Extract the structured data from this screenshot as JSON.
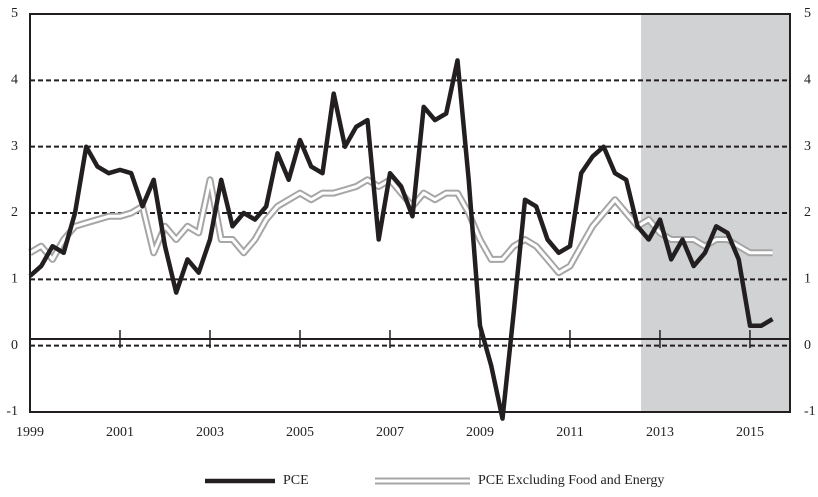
{
  "chart_data": {
    "type": "line",
    "x": [
      1999,
      1999.25,
      1999.5,
      1999.75,
      2000,
      2000.25,
      2000.5,
      2000.75,
      2001,
      2001.25,
      2001.5,
      2001.75,
      2002,
      2002.25,
      2002.5,
      2002.75,
      2003,
      2003.25,
      2003.5,
      2003.75,
      2004,
      2004.25,
      2004.5,
      2004.75,
      2005,
      2005.25,
      2005.5,
      2005.75,
      2006,
      2006.25,
      2006.5,
      2006.75,
      2007,
      2007.25,
      2007.5,
      2007.75,
      2008,
      2008.25,
      2008.5,
      2008.75,
      2009,
      2009.25,
      2009.5,
      2009.75,
      2010,
      2010.25,
      2010.5,
      2010.75,
      2011,
      2011.25,
      2011.5,
      2011.75,
      2012,
      2012.25,
      2012.5,
      2012.75,
      2013,
      2013.25,
      2013.5,
      2013.75,
      2014,
      2014.25,
      2014.5,
      2014.75,
      2015,
      2015.25,
      2015.5
    ],
    "series": [
      {
        "name": "PCE",
        "color": "#231f20",
        "style": "solid",
        "values": [
          1.05,
          1.2,
          1.5,
          1.4,
          2.0,
          3.0,
          2.7,
          2.6,
          2.65,
          2.6,
          2.1,
          2.5,
          1.5,
          0.8,
          1.3,
          1.1,
          1.6,
          2.5,
          1.8,
          2.0,
          1.9,
          2.1,
          2.9,
          2.5,
          3.1,
          2.7,
          2.6,
          3.8,
          3.0,
          3.3,
          3.4,
          1.6,
          2.6,
          2.4,
          1.95,
          3.6,
          3.4,
          3.5,
          4.3,
          2.5,
          0.3,
          -0.3,
          -1.1,
          0.5,
          2.2,
          2.1,
          1.6,
          1.4,
          1.5,
          2.6,
          2.85,
          3.0,
          2.6,
          2.5,
          1.8,
          1.6,
          1.9,
          1.3,
          1.6,
          1.2,
          1.4,
          1.8,
          1.7,
          1.3,
          0.3,
          0.3,
          0.4
        ]
      },
      {
        "name": "PCE Excluding Food and Energy",
        "color": "#a6a6a6",
        "style": "double",
        "values": [
          1.4,
          1.5,
          1.3,
          1.6,
          1.8,
          1.85,
          1.9,
          1.95,
          1.95,
          2.0,
          2.1,
          1.4,
          1.8,
          1.6,
          1.8,
          1.7,
          2.5,
          1.6,
          1.6,
          1.4,
          1.6,
          1.9,
          2.1,
          2.2,
          2.3,
          2.2,
          2.3,
          2.3,
          2.35,
          2.4,
          2.5,
          2.4,
          2.5,
          2.3,
          2.1,
          2.3,
          2.2,
          2.3,
          2.3,
          2.0,
          1.6,
          1.3,
          1.3,
          1.5,
          1.6,
          1.5,
          1.3,
          1.1,
          1.2,
          1.5,
          1.8,
          2.0,
          2.2,
          2.0,
          1.8,
          1.9,
          1.7,
          1.6,
          1.6,
          1.6,
          1.5,
          1.6,
          1.6,
          1.5,
          1.4,
          1.4,
          1.4
        ]
      }
    ],
    "xlim": [
      1999,
      2015.89
    ],
    "xticks": [
      1999,
      2001,
      2003,
      2005,
      2007,
      2009,
      2011,
      2013,
      2015
    ],
    "ylim": [
      -1,
      5
    ],
    "yticks": [
      -1,
      0,
      1,
      2,
      3,
      4,
      5
    ],
    "grid": true,
    "reference_line": 0.1,
    "shaded_region": [
      2012.58,
      2015.89
    ],
    "shade_color": "#d1d2d4",
    "legend": "bottom"
  }
}
